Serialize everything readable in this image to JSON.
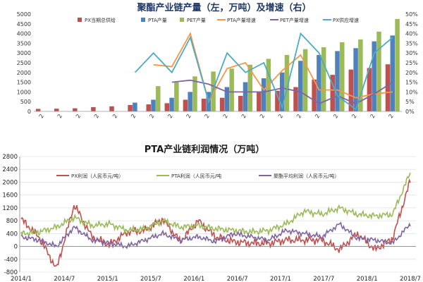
{
  "chart_data": [
    {
      "type": "bar",
      "title": "聚酯产业链产量（左，万吨）及增速（右）",
      "ylim_left": [
        0,
        5000
      ],
      "yticks_left": [
        "0",
        "500",
        "1000",
        "1500",
        "2000",
        "2500",
        "3000",
        "3500",
        "4000",
        "4500",
        "5000"
      ],
      "ylim_right": [
        0,
        50
      ],
      "yticks_right": [
        "0%",
        "5%",
        "10%",
        "15%",
        "20%",
        "25%",
        "30%",
        "35%",
        "40%",
        "45%",
        "50%"
      ],
      "x_tick_label": "2",
      "x_tick_count": 20,
      "legend": [
        "PX当期总供给",
        "PTA产量",
        "PET产量",
        "PTA产量增速",
        "PET产量增速",
        "PX供应增速"
      ],
      "colors": {
        "px": "#c0504d",
        "pta": "#4f81bd",
        "pet": "#9bbb59",
        "pta_g": "#f79646",
        "pet_g": "#8064a2",
        "px_g": "#4bacc6"
      },
      "series": [
        {
          "name": "PX当期总供给",
          "kind": "bar",
          "values": [
            130,
            140,
            160,
            220,
            260,
            330,
            360,
            420,
            600,
            650,
            700,
            800,
            1000,
            1060,
            1250,
            1640,
            1880,
            2150,
            2230,
            2420
          ]
        },
        {
          "name": "PTA产量",
          "kind": "bar",
          "values": [
            null,
            null,
            null,
            null,
            null,
            450,
            600,
            700,
            1000,
            1000,
            1250,
            1500,
            1700,
            2000,
            2600,
            2900,
            3100,
            3250,
            3600,
            3900
          ]
        },
        {
          "name": "PET产量",
          "kind": "bar",
          "values": [
            null,
            null,
            null,
            null,
            null,
            null,
            1300,
            1500,
            1800,
            2050,
            2200,
            2400,
            2700,
            2900,
            3200,
            3300,
            3550,
            3700,
            4100,
            4750
          ]
        },
        {
          "name": "PTA产量增速",
          "kind": "line",
          "values": [
            null,
            null,
            null,
            null,
            null,
            null,
            24,
            23,
            40,
            5,
            22,
            25,
            11,
            21,
            29,
            11,
            11,
            7,
            9,
            10
          ]
        },
        {
          "name": "PET产量增速",
          "kind": "line",
          "values": [
            null,
            null,
            null,
            null,
            null,
            null,
            null,
            15,
            16,
            14,
            10,
            10,
            10,
            12,
            10,
            4,
            8,
            4,
            9,
            15
          ]
        },
        {
          "name": "PX供应增速",
          "kind": "line",
          "values": [
            null,
            null,
            null,
            null,
            null,
            20,
            30,
            20,
            38,
            5,
            30,
            20,
            25,
            2,
            40,
            30,
            8,
            1,
            30,
            38
          ]
        }
      ]
    },
    {
      "type": "line",
      "title": "PTA产业链利润情况（万吨）",
      "ylim": [
        -800,
        2800
      ],
      "yticks": [
        "-800",
        "-400",
        "0",
        "400",
        "800",
        "1200",
        "1600",
        "2000",
        "2400",
        "2800"
      ],
      "x_labels": [
        "2014/1",
        "2014/7",
        "2015/1",
        "2015/7",
        "2016/1",
        "2016/7",
        "2017/1",
        "2017/7",
        "2018/1",
        "2018/7"
      ],
      "legend": [
        "PX利润（人民币元/吨）",
        "PTA利润（人民币元/吨",
        "聚酯平均利润（人民币元/吨）"
      ],
      "colors": {
        "px": "#c0504d",
        "pta": "#9bbb59",
        "pet": "#8064a2"
      },
      "series": [
        {
          "name": "PX利润（人民币元/吨）",
          "values": [
            850,
            300,
            -700,
            1300,
            300,
            50,
            450,
            500,
            850,
            150,
            800,
            300,
            150,
            100,
            100,
            200,
            200,
            200,
            -100,
            400,
            -100,
            250,
            2050
          ]
        },
        {
          "name": "PTA利润（人民币元/吨",
          "values": [
            400,
            450,
            600,
            900,
            650,
            700,
            500,
            550,
            800,
            600,
            650,
            550,
            500,
            450,
            500,
            700,
            1100,
            1000,
            1200,
            1000,
            950,
            1000,
            2300
          ]
        },
        {
          "name": "聚酯平均利润（人民币元/吨）",
          "values": [
            300,
            200,
            0,
            600,
            200,
            100,
            0,
            200,
            400,
            200,
            300,
            150,
            400,
            300,
            200,
            500,
            400,
            300,
            700,
            250,
            200,
            100,
            700
          ]
        }
      ]
    }
  ]
}
